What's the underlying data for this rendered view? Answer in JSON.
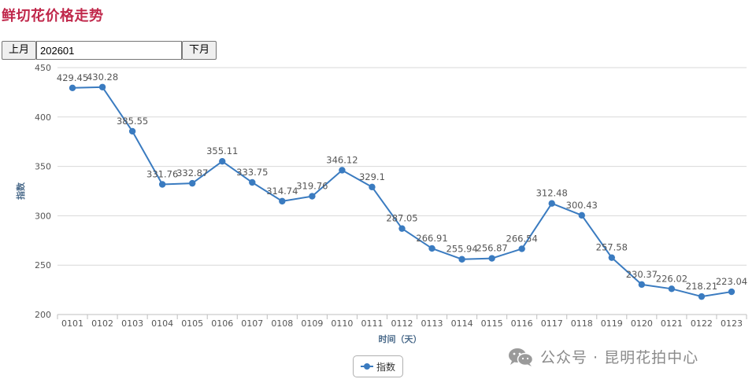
{
  "page": {
    "title": "鲜切花价格走势"
  },
  "month_nav": {
    "prev_label": "上月",
    "next_label": "下月",
    "value": "202601"
  },
  "watermark": {
    "icon": "wechat-icon",
    "text": "公众号 · 昆明花拍中心"
  },
  "colors": {
    "title": "#c0284b",
    "series": "#3a7bc0",
    "grid": "#d8d8d8"
  },
  "chart_data": {
    "type": "line",
    "title": "",
    "xlabel": "时间（天）",
    "ylabel": "指数",
    "ylim": [
      200,
      450
    ],
    "yticks": [
      200,
      250,
      300,
      350,
      400,
      450
    ],
    "categories": [
      "0101",
      "0102",
      "0103",
      "0104",
      "0105",
      "0106",
      "0107",
      "0108",
      "0109",
      "0110",
      "0111",
      "0112",
      "0113",
      "0114",
      "0115",
      "0116",
      "0117",
      "0118",
      "0119",
      "0120",
      "0121",
      "0122",
      "0123"
    ],
    "series": [
      {
        "name": "指数",
        "values": [
          429.45,
          430.28,
          385.55,
          331.76,
          332.87,
          355.11,
          333.75,
          314.74,
          319.76,
          346.12,
          329.1,
          287.05,
          266.91,
          255.94,
          256.87,
          266.54,
          312.48,
          300.43,
          257.58,
          230.37,
          226.02,
          218.21,
          223.04
        ],
        "labels": [
          "429.45",
          "430.28",
          "385.55",
          "331.76",
          "332.87",
          "355.11",
          "333.75",
          "314.74",
          "319.76",
          "346.12",
          "329.1",
          "287.05",
          "266.91",
          "255.94",
          "256.87",
          "266.54",
          "312.48",
          "300.43",
          "257.58",
          "230.37",
          "226.02",
          "218.21",
          "223.04"
        ]
      }
    ],
    "legend": "bottom-center",
    "grid": true
  }
}
